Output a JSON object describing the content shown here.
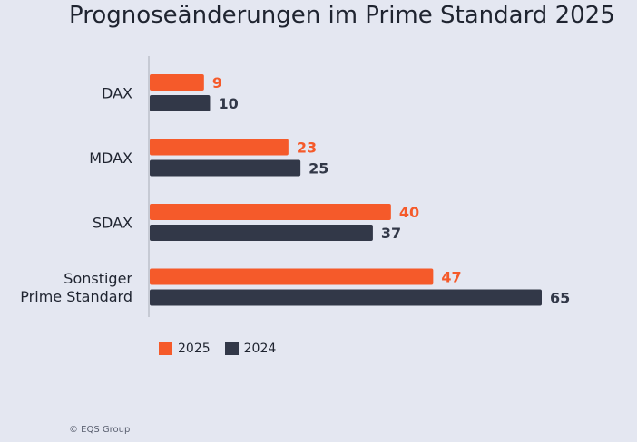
{
  "chart_data": {
    "type": "bar",
    "orientation": "horizontal",
    "title": "Prognoseänderungen im Prime Standard 2025",
    "categories": [
      [
        "DAX"
      ],
      [
        "MDAX"
      ],
      [
        "SDAX"
      ],
      [
        "Sonstiger",
        "Prime Standard"
      ]
    ],
    "series": [
      {
        "name": "2025",
        "color": "#f55a2a",
        "values": [
          9,
          23,
          40,
          47
        ]
      },
      {
        "name": "2024",
        "color": "#323848",
        "values": [
          10,
          25,
          37,
          65
        ]
      }
    ],
    "xlim": [
      0,
      65
    ],
    "grid": false,
    "legend": "bottom-left",
    "xlabel": "",
    "ylabel": ""
  },
  "credit": "© EQS Group"
}
